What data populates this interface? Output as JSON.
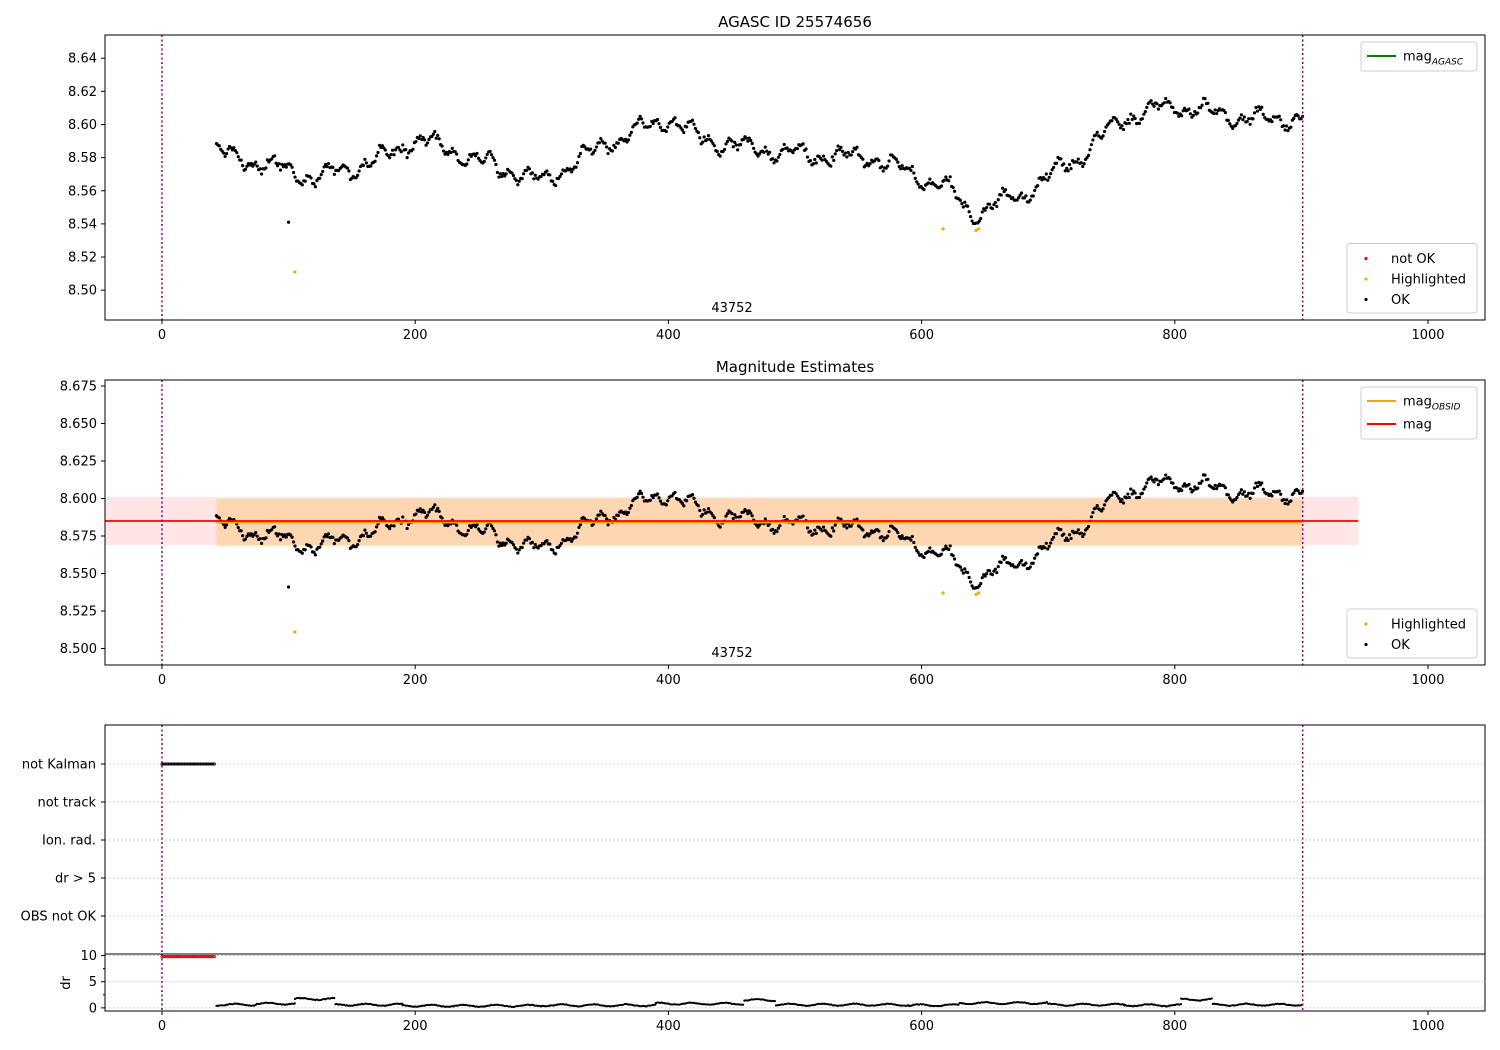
{
  "chart_data": [
    {
      "type": "scatter",
      "title": "AGASC ID 25574656",
      "xlim": [
        -45,
        1045
      ],
      "ylim": [
        8.482,
        8.654
      ],
      "x_ticks": [
        0,
        200,
        400,
        600,
        800,
        1000
      ],
      "y_ticks": [
        "8.50",
        "8.52",
        "8.54",
        "8.56",
        "8.58",
        "8.60",
        "8.62",
        "8.64"
      ],
      "annotation": "43752",
      "vlines": [
        0,
        901
      ],
      "legend_lines": [
        {
          "label": "mag",
          "sub": "AGASC",
          "color": "#008000"
        }
      ],
      "legend_points": [
        {
          "label": "not OK",
          "color": "#ff0000"
        },
        {
          "label": "Highlighted",
          "color": "#ffa500"
        },
        {
          "label": "OK",
          "color": "#000000"
        }
      ],
      "series": [
        {
          "name": "OK",
          "color": "#000000",
          "x_start": 43,
          "x_end": 901,
          "x_step": 1.15,
          "trend_x": [
            43,
            120,
            170,
            200,
            250,
            300,
            350,
            400,
            430,
            500,
            560,
            620,
            640,
            680,
            720,
            760,
            800,
            850,
            901
          ],
          "trend_y": [
            8.583,
            8.568,
            8.578,
            8.592,
            8.578,
            8.565,
            8.588,
            8.604,
            8.59,
            8.582,
            8.58,
            8.562,
            8.546,
            8.558,
            8.578,
            8.604,
            8.612,
            8.604,
            8.603
          ]
        },
        {
          "name": "Highlighted",
          "color": "#ffa500",
          "x": [
            105,
            617,
            643,
            645
          ],
          "y": [
            8.511,
            8.537,
            8.536,
            8.537
          ]
        },
        {
          "name": "OK outlier",
          "color": "#000000",
          "x": [
            100
          ],
          "y": [
            8.541
          ]
        }
      ]
    },
    {
      "type": "scatter",
      "title": "Magnitude Estimates",
      "xlim": [
        -45,
        1045
      ],
      "ylim": [
        8.489,
        8.679
      ],
      "x_ticks": [
        0,
        200,
        400,
        600,
        800,
        1000
      ],
      "y_ticks": [
        "8.500",
        "8.525",
        "8.550",
        "8.575",
        "8.600",
        "8.625",
        "8.650",
        "8.675"
      ],
      "annotation": "43752",
      "vlines": [
        0,
        901
      ],
      "mag": 8.585,
      "mag_band": [
        8.569,
        8.601
      ],
      "mag_extent": [
        -45,
        945
      ],
      "mag_obsid": 8.584,
      "mag_obsid_band": [
        8.568,
        8.6
      ],
      "mag_obsid_extent": [
        43,
        901
      ],
      "legend_lines": [
        {
          "label": "mag",
          "sub": "OBSID",
          "color": "#ffa500"
        },
        {
          "label": "mag",
          "sub": "",
          "color": "#ff0000"
        }
      ],
      "legend_points": [
        {
          "label": "Highlighted",
          "color": "#ffa500"
        },
        {
          "label": "OK",
          "color": "#000000"
        }
      ]
    },
    {
      "type": "scatter",
      "title": "",
      "xlim": [
        -45,
        1045
      ],
      "categories": [
        "not Kalman",
        "not track",
        "Ion. rad.",
        "dr > 5",
        "OBS not OK"
      ],
      "flag_series": {
        "category": "not Kalman",
        "x_start": 0,
        "x_end": 42,
        "x_step": 1.15
      }
    },
    {
      "type": "scatter",
      "title": "",
      "ylabel": "dr",
      "xlim": [
        -45,
        1045
      ],
      "ylim": [
        -0.6,
        10.3
      ],
      "x_ticks": [
        0,
        200,
        400,
        600,
        800,
        1000
      ],
      "y_ticks": [
        "0",
        "5",
        "10"
      ],
      "vlines": [
        0,
        901
      ],
      "high_dr": {
        "value": 9.8,
        "x_start": 0,
        "x_end": 42,
        "color": "#ff0000"
      },
      "dr_series": {
        "x_start": 43,
        "x_end": 901,
        "x_step": 1.15,
        "color": "#000000",
        "segments": [
          {
            "x": [
              43,
              75
            ],
            "y": 0.6
          },
          {
            "x": [
              75,
              105
            ],
            "y": 0.8
          },
          {
            "x": [
              105,
              137
            ],
            "y": 1.7
          },
          {
            "x": [
              137,
              190
            ],
            "y": 0.6
          },
          {
            "x": [
              190,
              300
            ],
            "y": 0.4
          },
          {
            "x": [
              300,
              390
            ],
            "y": 0.5
          },
          {
            "x": [
              390,
              460
            ],
            "y": 0.8
          },
          {
            "x": [
              460,
              485
            ],
            "y": 1.5
          },
          {
            "x": [
              485,
              590
            ],
            "y": 0.6
          },
          {
            "x": [
              590,
              630
            ],
            "y": 0.5
          },
          {
            "x": [
              630,
              700
            ],
            "y": 0.9
          },
          {
            "x": [
              700,
              760
            ],
            "y": 0.6
          },
          {
            "x": [
              760,
              805
            ],
            "y": 0.5
          },
          {
            "x": [
              805,
              830
            ],
            "y": 1.6
          },
          {
            "x": [
              830,
              901
            ],
            "y": 0.6
          }
        ]
      }
    }
  ]
}
